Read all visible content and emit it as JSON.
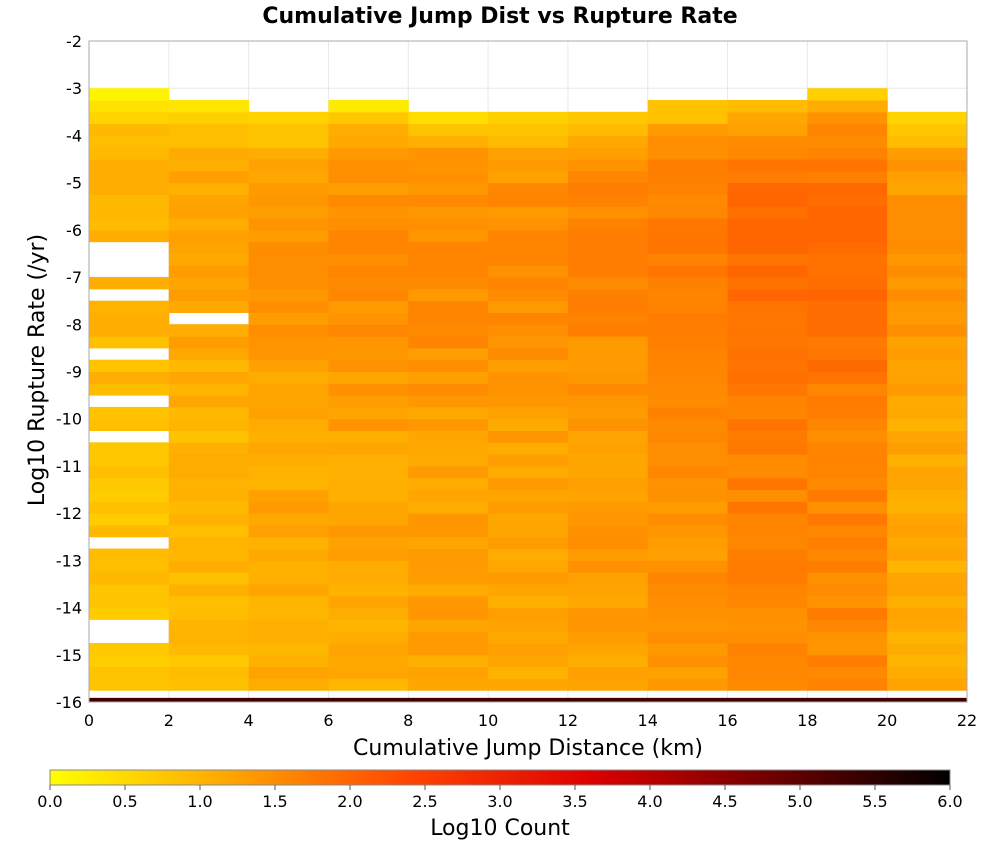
{
  "chart_data": {
    "type": "heatmap",
    "title": "Cumulative Jump Dist vs Rupture Rate",
    "xlabel": "Cumulative Jump Distance (km)",
    "ylabel": "Log10 Rupture Rate (/yr)",
    "xlim": [
      0,
      22
    ],
    "ylim": [
      -16,
      -2
    ],
    "x_bin_width": 2,
    "y_bin_height": 0.25,
    "x_ticks": [
      "0",
      "2",
      "4",
      "6",
      "8",
      "10",
      "12",
      "14",
      "16",
      "18",
      "20",
      "22"
    ],
    "y_ticks": [
      "-2",
      "-3",
      "-4",
      "-5",
      "-6",
      "-7",
      "-8",
      "-9",
      "-10",
      "-11",
      "-12",
      "-13",
      "-14",
      "-15",
      "-16"
    ],
    "colorbar": {
      "label": "Log10 Count",
      "range": [
        0,
        6
      ],
      "ticks": [
        "0.0",
        "0.5",
        "1.0",
        "1.5",
        "2.0",
        "2.5",
        "3.0",
        "3.5",
        "4.0",
        "4.5",
        "5.0",
        "5.5",
        "6.0"
      ],
      "colormap": [
        "#ffff00",
        "#ffa500",
        "#ff4500",
        "#dd0000",
        "#700000",
        "#000000"
      ]
    },
    "columns": [
      {
        "x": 0,
        "top": -3.0,
        "bottom_value": 5.3,
        "holes": [
          -6.5,
          -6.75,
          -7.0,
          -7.5,
          -8.75,
          -9.75,
          -10.5,
          -12.75,
          -14.5,
          -14.75
        ],
        "min": 0.15,
        "max": 1.1
      },
      {
        "x": 2,
        "top": -3.25,
        "bottom_value": 5.3,
        "holes": [
          -8.0
        ],
        "min": 0.05,
        "max": 1.3
      },
      {
        "x": 4,
        "top": -3.5,
        "bottom_value": 5.3,
        "holes": [],
        "min": 0.3,
        "max": 1.5
      },
      {
        "x": 6,
        "top": -3.25,
        "bottom_value": 5.3,
        "holes": [],
        "min": 0.2,
        "max": 1.6
      },
      {
        "x": 8,
        "top": -3.5,
        "bottom_value": 5.3,
        "holes": [],
        "min": 0.4,
        "max": 1.6
      },
      {
        "x": 10,
        "top": -3.5,
        "bottom_value": 5.3,
        "holes": [],
        "min": 0.3,
        "max": 1.6
      },
      {
        "x": 12,
        "top": -3.5,
        "bottom_value": 5.3,
        "holes": [],
        "min": 0.4,
        "max": 1.7
      },
      {
        "x": 14,
        "top": -3.25,
        "bottom_value": 5.3,
        "holes": [],
        "min": 0.6,
        "max": 1.8
      },
      {
        "x": 16,
        "top": -3.25,
        "bottom_value": 5.3,
        "holes": [],
        "min": 0.7,
        "max": 2.0
      },
      {
        "x": 18,
        "top": -3.0,
        "bottom_value": 5.3,
        "holes": [],
        "min": 0.6,
        "max": 2.0
      },
      {
        "x": 20,
        "top": -3.5,
        "bottom_value": 5.3,
        "holes": [],
        "min": 0.3,
        "max": 1.5
      }
    ]
  }
}
